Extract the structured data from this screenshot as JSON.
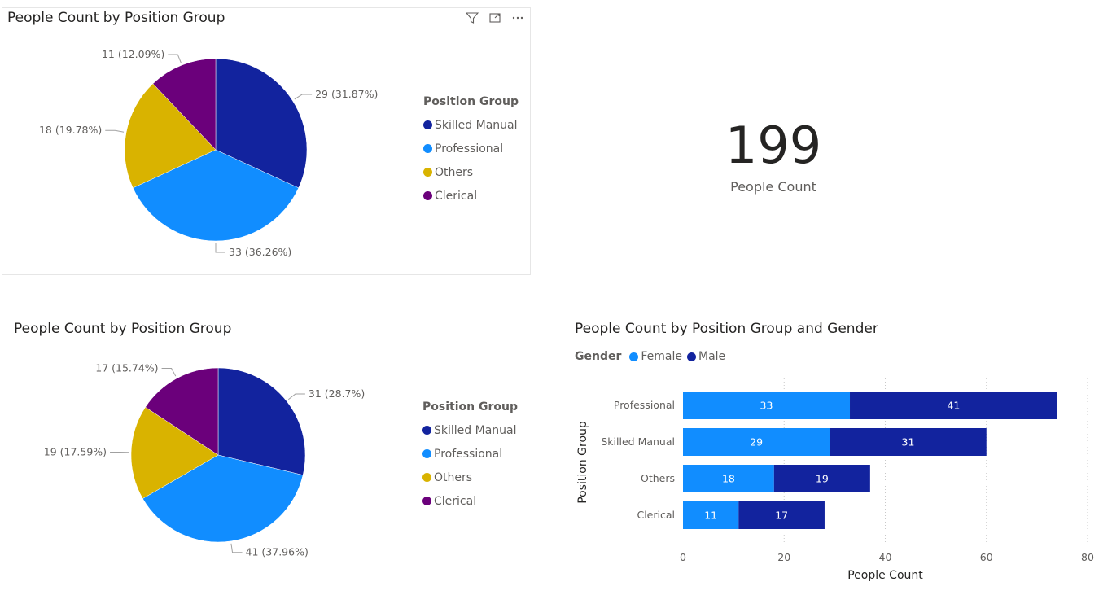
{
  "colors": {
    "Skilled Manual": "#12239E",
    "Professional": "#118DFF",
    "Others": "#D9B300",
    "Clerical": "#6B007B",
    "Female": "#118DFF",
    "Male": "#12239E"
  },
  "pie1": {
    "title": "People Count by Position Group",
    "legend_title": "Position Group",
    "legend_items": [
      "Skilled Manual",
      "Professional",
      "Others",
      "Clerical"
    ],
    "header_icons": [
      "filter-icon",
      "focus-mode-icon",
      "more-options-icon"
    ]
  },
  "pie2": {
    "title": "People Count by Position Group",
    "legend_title": "Position Group",
    "legend_items": [
      "Skilled Manual",
      "Professional",
      "Others",
      "Clerical"
    ]
  },
  "card": {
    "value": "199",
    "label": "People Count"
  },
  "bar": {
    "title": "People Count by Position Group and Gender",
    "legend_title": "Gender",
    "legend_items": [
      "Female",
      "Male"
    ]
  },
  "chart_data": [
    {
      "type": "pie",
      "title": "People Count by Position Group",
      "legend_title": "Position Group",
      "slices": [
        {
          "name": "Skilled Manual",
          "value": 29,
          "label": "29 (31.87%)"
        },
        {
          "name": "Professional",
          "value": 33,
          "label": "33 (36.26%)"
        },
        {
          "name": "Others",
          "value": 18,
          "label": "18 (19.78%)"
        },
        {
          "name": "Clerical",
          "value": 11,
          "label": "11 (12.09%)"
        }
      ]
    },
    {
      "type": "pie",
      "title": "People Count by Position Group",
      "legend_title": "Position Group",
      "slices": [
        {
          "name": "Skilled Manual",
          "value": 31,
          "label": "31 (28.7%)"
        },
        {
          "name": "Professional",
          "value": 41,
          "label": "41 (37.96%)"
        },
        {
          "name": "Others",
          "value": 19,
          "label": "19 (17.59%)"
        },
        {
          "name": "Clerical",
          "value": 17,
          "label": "17 (15.74%)"
        }
      ]
    },
    {
      "type": "bar",
      "orientation": "horizontal",
      "stacked": true,
      "title": "People Count by Position Group and Gender",
      "categories": [
        "Professional",
        "Skilled Manual",
        "Others",
        "Clerical"
      ],
      "series": [
        {
          "name": "Female",
          "values": [
            33,
            29,
            18,
            11
          ]
        },
        {
          "name": "Male",
          "values": [
            41,
            31,
            19,
            17
          ]
        }
      ],
      "xlabel": "People Count",
      "ylabel": "Position Group",
      "xlim": [
        0,
        80
      ],
      "xticks": [
        0,
        20,
        40,
        60,
        80
      ],
      "legend_title": "Gender",
      "legend_position": "top-left",
      "grid": true
    }
  ]
}
